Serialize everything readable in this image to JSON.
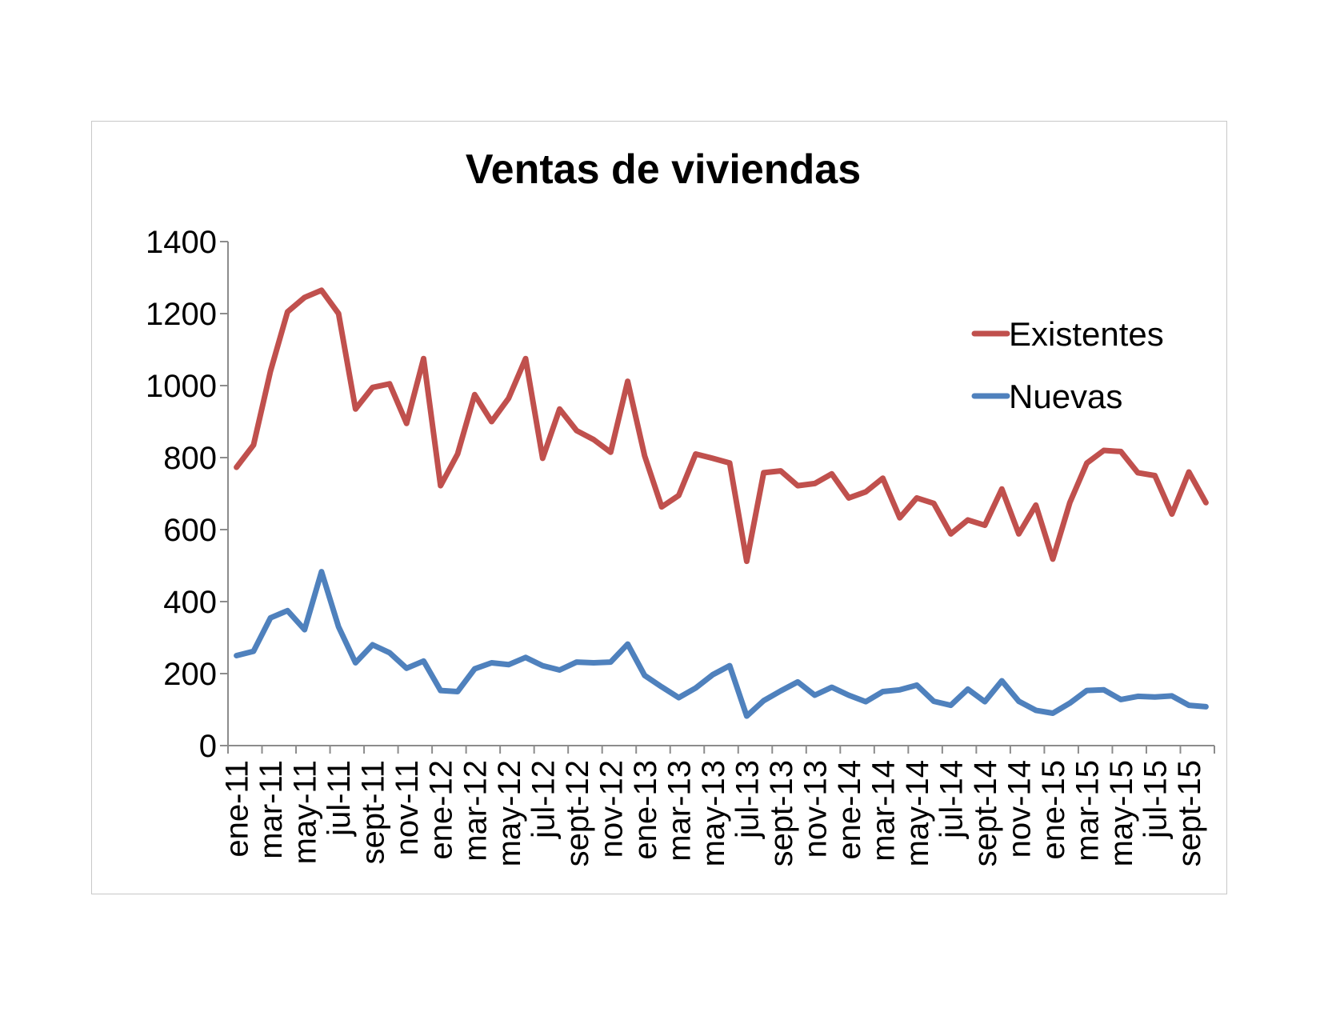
{
  "chart_data": {
    "type": "line",
    "title": "Ventas de viviendas",
    "xlabel": "",
    "ylabel": "",
    "ylim": [
      0,
      1400
    ],
    "yticks": [
      0,
      200,
      400,
      600,
      800,
      1000,
      1200,
      1400
    ],
    "grid": false,
    "legend_position": "right",
    "x": [
      "ene-11",
      "feb-11",
      "mar-11",
      "abr-11",
      "may-11",
      "jun-11",
      "jul-11",
      "ago-11",
      "sept-11",
      "oct-11",
      "nov-11",
      "dic-11",
      "ene-12",
      "feb-12",
      "mar-12",
      "abr-12",
      "may-12",
      "jun-12",
      "jul-12",
      "ago-12",
      "sept-12",
      "oct-12",
      "nov-12",
      "dic-12",
      "ene-13",
      "feb-13",
      "mar-13",
      "abr-13",
      "may-13",
      "jun-13",
      "jul-13",
      "ago-13",
      "sept-13",
      "oct-13",
      "nov-13",
      "dic-13",
      "ene-14",
      "feb-14",
      "mar-14",
      "abr-14",
      "may-14",
      "jun-14",
      "jul-14",
      "ago-14",
      "sept-14",
      "oct-14",
      "nov-14",
      "dic-14",
      "ene-15",
      "feb-15",
      "mar-15",
      "abr-15",
      "may-15",
      "jun-15",
      "jul-15",
      "ago-15",
      "sept-15",
      "oct-15"
    ],
    "x_tick_labels": [
      "ene-11",
      "mar-11",
      "may-11",
      "jul-11",
      "sept-11",
      "nov-11",
      "ene-12",
      "mar-12",
      "may-12",
      "jul-12",
      "sept-12",
      "nov-12",
      "ene-13",
      "mar-13",
      "may-13",
      "jul-13",
      "sept-13",
      "nov-13",
      "ene-14",
      "mar-14",
      "may-14",
      "jul-14",
      "sept-14",
      "nov-14",
      "ene-15",
      "mar-15",
      "may-15",
      "jul-15",
      "sept-15"
    ],
    "series": [
      {
        "name": "Existentes",
        "color": "#c0504d",
        "values": [
          773,
          835,
          1040,
          1205,
          1245,
          1265,
          1200,
          935,
          995,
          1005,
          895,
          1075,
          722,
          810,
          975,
          900,
          965,
          1075,
          798,
          935,
          875,
          850,
          815,
          1012,
          805,
          663,
          695,
          810,
          798,
          785,
          512,
          758,
          763,
          722,
          728,
          755,
          688,
          705,
          743,
          633,
          688,
          673,
          588,
          627,
          612,
          713,
          588,
          668,
          518,
          675,
          785,
          820,
          817,
          758,
          750,
          643,
          760,
          675
        ]
      },
      {
        "name": "Nuevas",
        "color": "#4f81bd",
        "values": [
          250,
          262,
          355,
          375,
          322,
          483,
          330,
          230,
          280,
          258,
          215,
          235,
          153,
          150,
          213,
          230,
          225,
          245,
          222,
          210,
          232,
          230,
          232,
          282,
          195,
          163,
          133,
          160,
          197,
          222,
          82,
          125,
          152,
          177,
          140,
          162,
          140,
          122,
          150,
          155,
          168,
          123,
          112,
          157,
          122,
          180,
          123,
          98,
          90,
          118,
          153,
          155,
          128,
          137,
          135,
          138,
          112,
          108
        ]
      }
    ]
  }
}
